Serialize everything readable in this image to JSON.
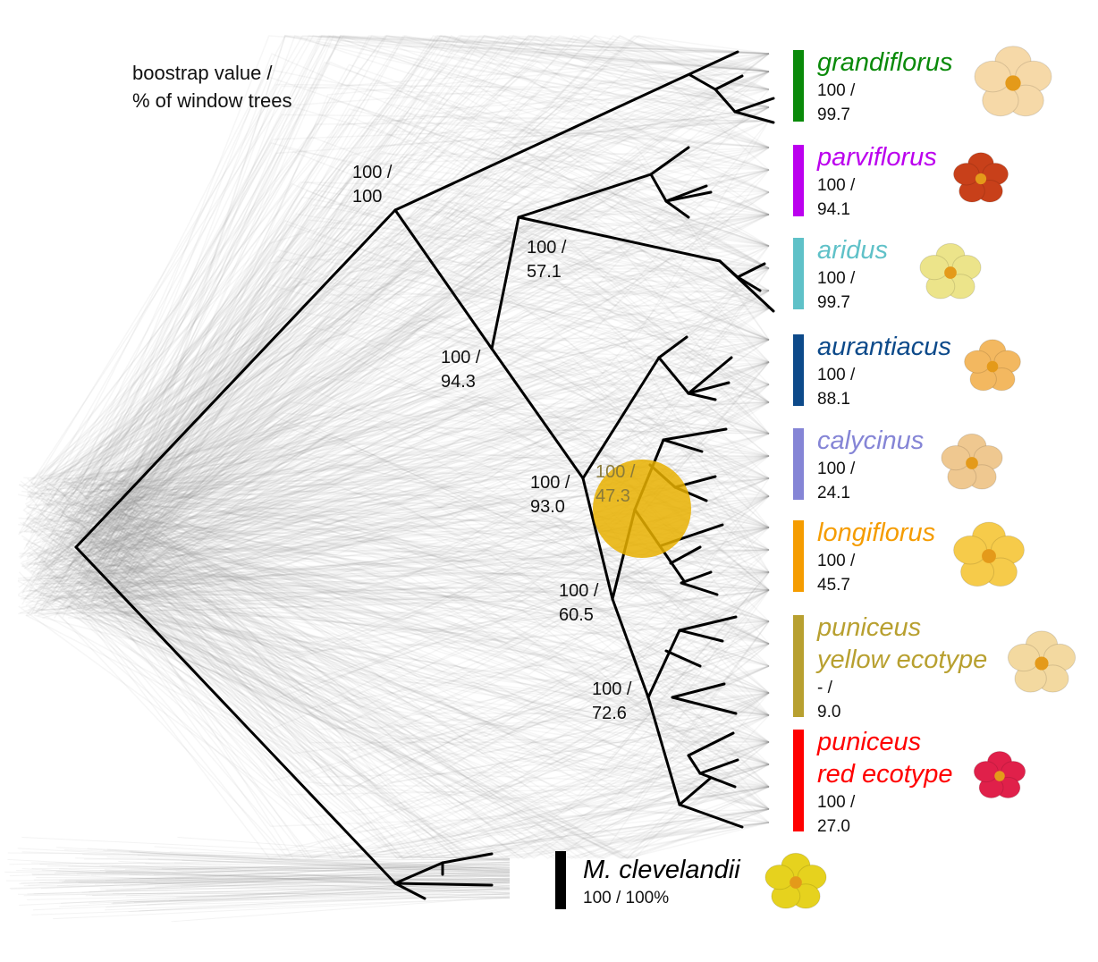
{
  "legend": {
    "line1": "boostrap value /",
    "line2": "% of window trees"
  },
  "nodes": [
    {
      "id": "n_root_ingroup",
      "line1": "100 /",
      "line2": "100"
    },
    {
      "id": "n_parv_arid",
      "line1": "100 /",
      "line2": "57.1"
    },
    {
      "id": "n_943",
      "line1": "100 /",
      "line2": "94.3"
    },
    {
      "id": "n_930",
      "line1": "100 /",
      "line2": "93.0"
    },
    {
      "id": "n_473",
      "line1": "100 /",
      "line2": "47.3"
    },
    {
      "id": "n_605",
      "line1": "100 /",
      "line2": "60.5"
    },
    {
      "id": "n_726",
      "line1": "100 /",
      "line2": "72.6"
    }
  ],
  "taxa": [
    {
      "name": "grandiflorus",
      "line1": "100 /",
      "line2": "99.7",
      "color": "#0a8a0a",
      "flower": "#f6d9a8"
    },
    {
      "name": "parviflorus",
      "line1": "100 /",
      "line2": "94.1",
      "color": "#bb00ee",
      "flower": "#c8401a"
    },
    {
      "name": "aridus",
      "line1": "100 /",
      "line2": "99.7",
      "color": "#5fc1c8",
      "flower": "#ece48a"
    },
    {
      "name": "aurantiacus",
      "line1": "100 /",
      "line2": "88.1",
      "color": "#0d4a8a",
      "flower": "#f3b860"
    },
    {
      "name": "calycinus",
      "line1": "100 /",
      "line2": "24.1",
      "color": "#8585d6",
      "flower": "#efc890"
    },
    {
      "name": "longiflorus",
      "line1": "100 /",
      "line2": "45.7",
      "color": "#f59c00",
      "flower": "#f6cb4a"
    },
    {
      "name": "puniceus",
      "name2": "yellow ecotype",
      "line1": "- /",
      "line2": "9.0",
      "color": "#b8a030",
      "flower": "#f3d9a0"
    },
    {
      "name": "puniceus",
      "name2": "red ecotype",
      "line1": "100 /",
      "line2": "27.0",
      "color": "#ff0000",
      "flower": "#e0204a"
    }
  ],
  "outgroup": {
    "name": "M. clevelandii",
    "value": "100 / 100%",
    "color": "#000000",
    "flower": "#e6d21e"
  },
  "highlight_color": "#e8b000"
}
